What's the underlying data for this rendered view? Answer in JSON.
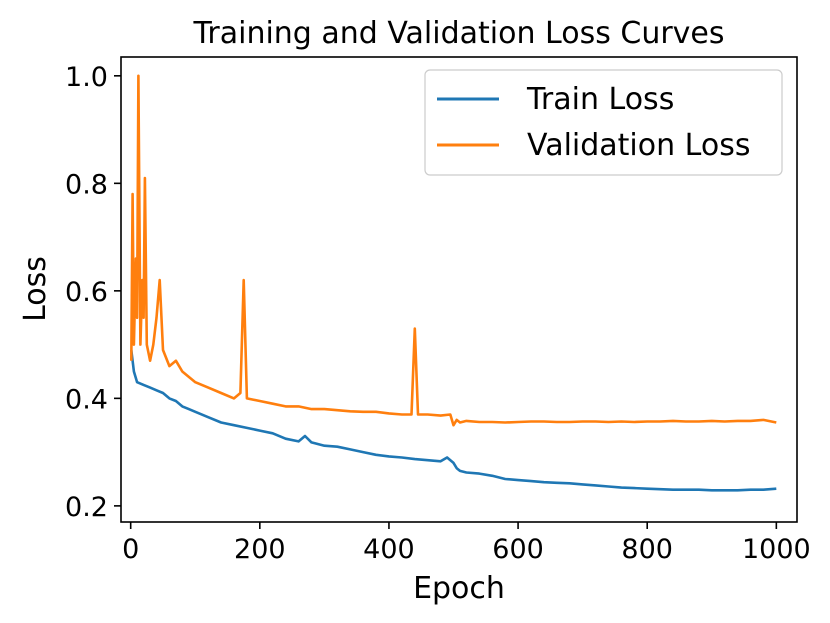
{
  "chart_data": {
    "type": "line",
    "title": "Training and Validation Loss Curves",
    "xlabel": "Epoch",
    "ylabel": "Loss",
    "xlim": [
      -15,
      1032
    ],
    "ylim": [
      0.17,
      1.035
    ],
    "xticks": [
      0,
      200,
      400,
      600,
      800,
      1000
    ],
    "xtick_labels": [
      "0",
      "200",
      "400",
      "600",
      "800",
      "1000"
    ],
    "yticks": [
      0.2,
      0.4,
      0.6,
      0.8,
      1.0
    ],
    "ytick_labels": [
      "0.2",
      "0.4",
      "0.6",
      "0.8",
      "1.0"
    ],
    "grid": false,
    "legend_position": "top-right",
    "series": [
      {
        "name": "Train Loss",
        "color": "#1f77b4",
        "x": [
          1,
          5,
          10,
          20,
          30,
          40,
          50,
          60,
          70,
          80,
          90,
          100,
          120,
          140,
          160,
          180,
          200,
          220,
          240,
          260,
          270,
          280,
          300,
          320,
          340,
          360,
          380,
          400,
          420,
          440,
          460,
          480,
          490,
          500,
          505,
          510,
          520,
          540,
          560,
          580,
          600,
          620,
          640,
          660,
          680,
          700,
          720,
          740,
          760,
          780,
          800,
          820,
          840,
          860,
          880,
          900,
          920,
          940,
          960,
          980,
          1000
        ],
        "y": [
          0.49,
          0.45,
          0.43,
          0.425,
          0.42,
          0.415,
          0.41,
          0.4,
          0.395,
          0.385,
          0.38,
          0.375,
          0.365,
          0.355,
          0.35,
          0.345,
          0.34,
          0.335,
          0.325,
          0.32,
          0.33,
          0.318,
          0.312,
          0.31,
          0.305,
          0.3,
          0.295,
          0.292,
          0.29,
          0.287,
          0.285,
          0.283,
          0.29,
          0.28,
          0.27,
          0.265,
          0.262,
          0.26,
          0.256,
          0.25,
          0.248,
          0.246,
          0.244,
          0.243,
          0.242,
          0.24,
          0.238,
          0.236,
          0.234,
          0.233,
          0.232,
          0.231,
          0.23,
          0.23,
          0.23,
          0.229,
          0.229,
          0.229,
          0.23,
          0.23,
          0.232
        ]
      },
      {
        "name": "Validation Loss",
        "color": "#ff7f0e",
        "x": [
          1,
          3,
          5,
          8,
          10,
          12,
          15,
          18,
          20,
          22,
          25,
          30,
          35,
          40,
          45,
          50,
          60,
          70,
          80,
          90,
          100,
          120,
          140,
          160,
          170,
          175,
          180,
          200,
          220,
          240,
          260,
          280,
          300,
          320,
          340,
          360,
          380,
          400,
          420,
          435,
          440,
          445,
          460,
          480,
          495,
          500,
          505,
          510,
          520,
          540,
          560,
          580,
          600,
          620,
          640,
          660,
          680,
          700,
          720,
          740,
          760,
          780,
          800,
          820,
          840,
          860,
          880,
          900,
          920,
          940,
          960,
          980,
          1000
        ],
        "y": [
          0.47,
          0.78,
          0.5,
          0.66,
          0.55,
          1.0,
          0.5,
          0.62,
          0.55,
          0.81,
          0.5,
          0.47,
          0.5,
          0.55,
          0.62,
          0.49,
          0.46,
          0.47,
          0.45,
          0.44,
          0.43,
          0.42,
          0.41,
          0.4,
          0.41,
          0.62,
          0.4,
          0.395,
          0.39,
          0.385,
          0.385,
          0.38,
          0.38,
          0.378,
          0.376,
          0.375,
          0.375,
          0.372,
          0.37,
          0.37,
          0.53,
          0.37,
          0.37,
          0.368,
          0.37,
          0.35,
          0.36,
          0.355,
          0.358,
          0.356,
          0.356,
          0.355,
          0.356,
          0.357,
          0.357,
          0.356,
          0.356,
          0.357,
          0.357,
          0.356,
          0.357,
          0.356,
          0.357,
          0.357,
          0.358,
          0.357,
          0.357,
          0.358,
          0.357,
          0.358,
          0.358,
          0.36,
          0.355
        ]
      }
    ]
  }
}
